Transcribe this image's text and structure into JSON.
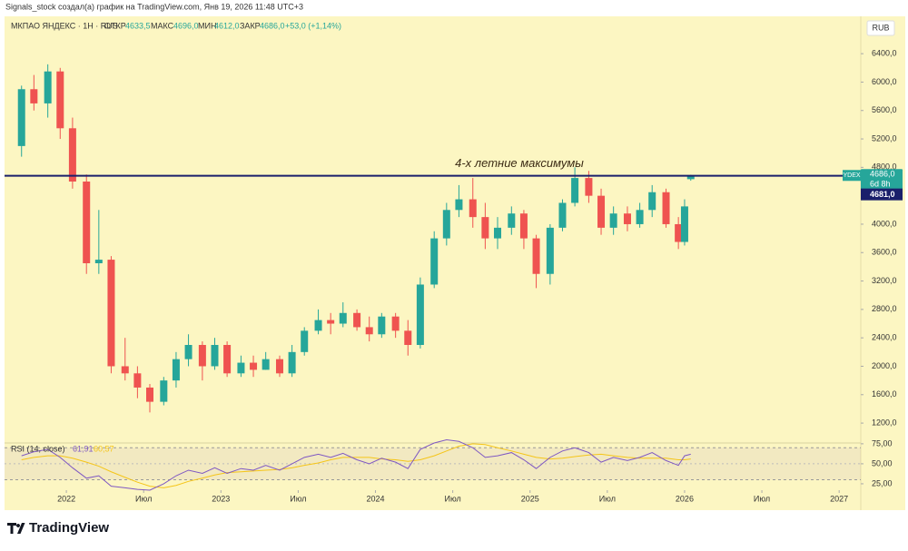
{
  "header": {
    "attribution": "Signals_stock создал(а) график на TradingView.com, Янв 19, 2026 11:48 UTC+3",
    "symbol": "МКПАО ЯНДЕКС · 1Н · RUS",
    "open_label": "ОТКР",
    "open": "4633,5",
    "high_label": "МАКС",
    "high": "4696,0",
    "low_label": "МИН",
    "low": "4612,0",
    "close_label": "ЗАКР",
    "close": "4686,0",
    "change": "+53,0 (+1,14%)",
    "currency": "RUB"
  },
  "chart_data": {
    "type": "candlestick",
    "up_color": "#26a69a",
    "down_color": "#ef5350",
    "x": [
      2021.71,
      2021.79,
      2021.88,
      2021.96,
      2022.04,
      2022.13,
      2022.21,
      2022.29,
      2022.38,
      2022.46,
      2022.54,
      2022.63,
      2022.71,
      2022.79,
      2022.88,
      2022.96,
      2023.04,
      2023.13,
      2023.21,
      2023.29,
      2023.38,
      2023.46,
      2023.54,
      2023.63,
      2023.71,
      2023.79,
      2023.88,
      2023.96,
      2024.04,
      2024.13,
      2024.21,
      2024.29,
      2024.38,
      2024.46,
      2024.54,
      2024.63,
      2024.71,
      2024.79,
      2024.88,
      2024.96,
      2025.04,
      2025.13,
      2025.21,
      2025.29,
      2025.38,
      2025.46,
      2025.54,
      2025.63,
      2025.71,
      2025.79,
      2025.88,
      2025.96,
      2026.0,
      2026.04
    ],
    "open": [
      5100,
      5900,
      5700,
      6150,
      5350,
      4600,
      3450,
      3500,
      2000,
      1900,
      1700,
      1500,
      1800,
      2100,
      2300,
      2000,
      2300,
      1900,
      2050,
      1950,
      2100,
      1900,
      2200,
      2500,
      2650,
      2600,
      2750,
      2550,
      2450,
      2700,
      2500,
      2300,
      3150,
      3800,
      4200,
      4350,
      4100,
      3800,
      3950,
      4150,
      3800,
      3300,
      3950,
      4300,
      4650,
      4400,
      3950,
      4150,
      4000,
      4200,
      4450,
      4000,
      3750,
      4633.5
    ],
    "high": [
      5950,
      6100,
      6250,
      6200,
      5500,
      4700,
      4200,
      3550,
      2400,
      2000,
      1750,
      1850,
      2200,
      2450,
      2350,
      2400,
      2350,
      2150,
      2150,
      2200,
      2150,
      2300,
      2550,
      2800,
      2750,
      2900,
      2800,
      2700,
      2750,
      2750,
      2650,
      3250,
      3900,
      4300,
      4550,
      4650,
      4300,
      4100,
      4250,
      4200,
      3850,
      4000,
      4350,
      4800,
      4750,
      4500,
      4250,
      4250,
      4300,
      4550,
      4500,
      4100,
      4350,
      4696
    ],
    "low": [
      4950,
      5600,
      5500,
      5200,
      4500,
      3300,
      3300,
      1900,
      1800,
      1550,
      1350,
      1450,
      1700,
      2000,
      1800,
      1950,
      1850,
      1850,
      1850,
      1950,
      1850,
      1850,
      2150,
      2450,
      2450,
      2550,
      2500,
      2350,
      2400,
      2400,
      2150,
      2250,
      3100,
      3700,
      4100,
      3950,
      3650,
      3650,
      3850,
      3650,
      3100,
      3150,
      3900,
      4250,
      4300,
      3850,
      3850,
      3900,
      3950,
      4100,
      3950,
      3650,
      3700,
      4612
    ],
    "close": [
      5900,
      5700,
      6150,
      5350,
      4600,
      3450,
      3500,
      2000,
      1900,
      1700,
      1500,
      1800,
      2100,
      2300,
      2000,
      2300,
      1900,
      2050,
      1950,
      2100,
      1900,
      2200,
      2500,
      2650,
      2600,
      2750,
      2550,
      2450,
      2700,
      2500,
      2300,
      3150,
      3800,
      4200,
      4350,
      4100,
      3800,
      3950,
      4150,
      3800,
      3300,
      3950,
      4300,
      4650,
      4400,
      3950,
      4150,
      4000,
      4200,
      4450,
      4000,
      3750,
      4250,
      4686
    ],
    "xlim": [
      2021.6,
      2027.14
    ],
    "xticks": [
      {
        "value": 2022,
        "label": "2022"
      },
      {
        "value": 2022.5,
        "label": "Июл"
      },
      {
        "value": 2023,
        "label": "2023"
      },
      {
        "value": 2023.5,
        "label": "Июл"
      },
      {
        "value": 2024,
        "label": "2024"
      },
      {
        "value": 2024.5,
        "label": "Июл"
      },
      {
        "value": 2025,
        "label": "2025"
      },
      {
        "value": 2025.5,
        "label": "Июл"
      },
      {
        "value": 2026,
        "label": "2026"
      },
      {
        "value": 2026.5,
        "label": "Июл"
      },
      {
        "value": 2027,
        "label": "2027"
      }
    ],
    "ylim": [
      920,
      6900
    ],
    "yticks": [
      {
        "value": 1200,
        "label": "1200,0"
      },
      {
        "value": 1600,
        "label": "1600,0"
      },
      {
        "value": 2000,
        "label": "2000,0"
      },
      {
        "value": 2400,
        "label": "2400,0"
      },
      {
        "value": 2800,
        "label": "2800,0"
      },
      {
        "value": 3200,
        "label": "3200,0"
      },
      {
        "value": 3600,
        "label": "3600,0"
      },
      {
        "value": 4000,
        "label": "4000,0"
      },
      {
        "value": 4400,
        "label": "4400,0"
      },
      {
        "value": 4800,
        "label": "4800,0"
      },
      {
        "value": 5200,
        "label": "5200,0"
      },
      {
        "value": 5600,
        "label": "5600,0"
      },
      {
        "value": 6000,
        "label": "6000,0"
      },
      {
        "value": 6400,
        "label": "6400,0"
      }
    ],
    "level": {
      "value": 4681,
      "label": "4681,0",
      "color": "#1a1f6b"
    },
    "annotation": "4-х летние максимумы",
    "last_ticker": "YDEX",
    "last_price_label": "4686,0",
    "countdown": "6d 8h",
    "rsi": {
      "title": "RSI (14, close)",
      "value_label": "61,91",
      "ma_label": "60,57",
      "color": "#7e57c2",
      "ma_color": "#f5c518",
      "values": [
        60,
        65,
        68,
        58,
        45,
        32,
        35,
        22,
        20,
        18,
        17,
        25,
        35,
        42,
        38,
        45,
        38,
        44,
        42,
        48,
        42,
        50,
        58,
        62,
        58,
        63,
        55,
        50,
        57,
        52,
        44,
        68,
        76,
        80,
        78,
        70,
        58,
        60,
        64,
        55,
        44,
        58,
        66,
        70,
        64,
        52,
        58,
        54,
        58,
        64,
        54,
        48,
        60,
        62
      ],
      "ma": [
        55,
        58,
        60,
        60,
        57,
        52,
        47,
        40,
        33,
        27,
        22,
        20,
        23,
        28,
        32,
        36,
        39,
        40,
        41,
        42,
        43,
        45,
        48,
        51,
        55,
        58,
        58,
        58,
        56,
        55,
        53,
        55,
        60,
        66,
        72,
        75,
        74,
        70,
        66,
        62,
        58,
        56,
        57,
        59,
        61,
        62,
        60,
        58,
        57,
        57,
        57,
        55,
        55,
        56
      ],
      "ylim": [
        17,
        76
      ],
      "band": [
        30,
        70
      ],
      "yticks": [
        {
          "value": 25,
          "label": "25,00"
        },
        {
          "value": 50,
          "label": "50,00"
        },
        {
          "value": 75,
          "label": "75,00"
        }
      ]
    }
  },
  "footer": {
    "brand": "TradingView"
  }
}
